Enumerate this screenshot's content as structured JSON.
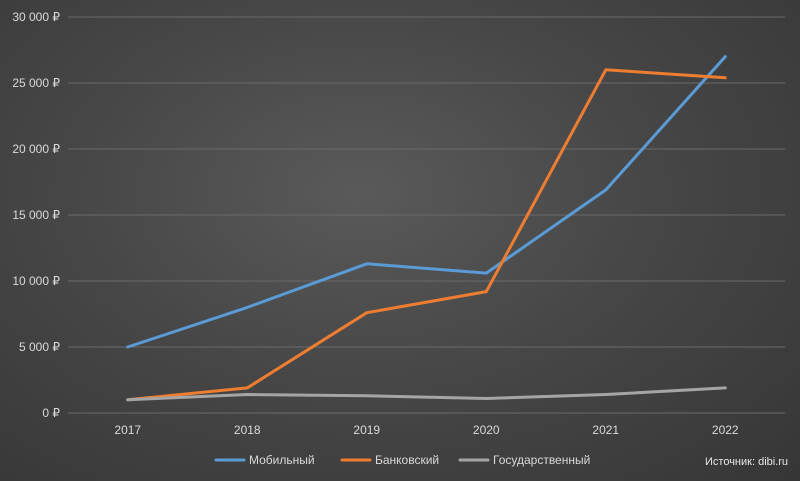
{
  "chart_data": {
    "type": "line",
    "categories": [
      "2017",
      "2018",
      "2019",
      "2020",
      "2021",
      "2022"
    ],
    "series": [
      {
        "name": "Мобильный",
        "color": "#5b9bd5",
        "values": [
          5000,
          8000,
          11300,
          10600,
          16900,
          27000
        ]
      },
      {
        "name": "Банковский",
        "color": "#ed7d31",
        "values": [
          1000,
          1900,
          7600,
          9200,
          26000,
          25400
        ]
      },
      {
        "name": "Государственный",
        "color": "#a5a5a5",
        "values": [
          1000,
          1400,
          1300,
          1100,
          1400,
          1900
        ]
      }
    ],
    "ylim": [
      0,
      30000
    ],
    "yticks": [
      0,
      5000,
      10000,
      15000,
      20000,
      25000,
      30000
    ],
    "ytick_labels": [
      "0 ₽",
      "5 000 ₽",
      "10 000 ₽",
      "15 000 ₽",
      "20 000 ₽",
      "25 000 ₽",
      "30 000 ₽"
    ],
    "grid": true,
    "legend_position": "bottom",
    "source": "Источник: dibi.ru"
  }
}
